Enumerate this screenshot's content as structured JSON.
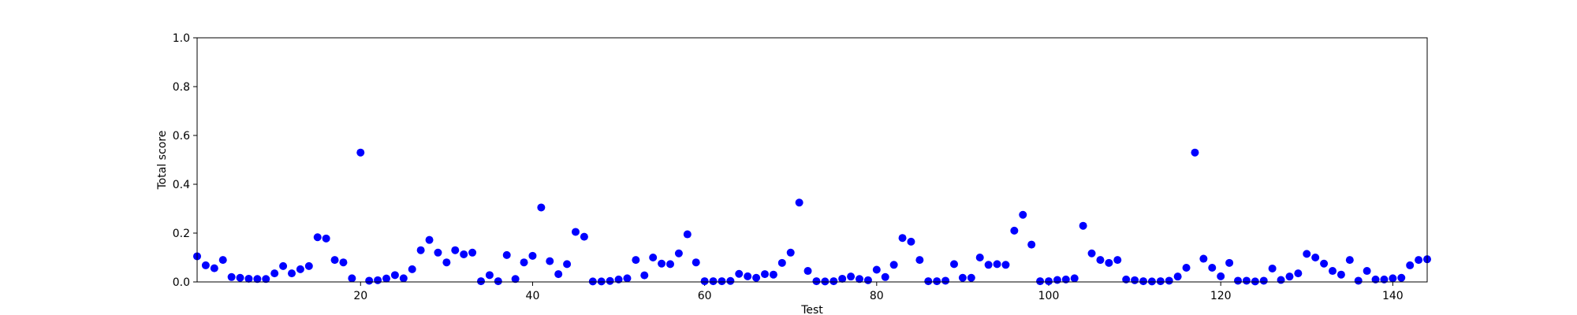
{
  "chart_data": {
    "type": "scatter",
    "title": "",
    "xlabel": "Test",
    "ylabel": "Total score",
    "xlim": [
      1,
      144
    ],
    "ylim": [
      0,
      1.0
    ],
    "xticks": [
      20,
      40,
      60,
      80,
      100,
      120,
      140
    ],
    "yticks": [
      0.0,
      0.2,
      0.4,
      0.6,
      0.8,
      1.0
    ],
    "ytick_labels": [
      "0.0",
      "0.2",
      "0.4",
      "0.6",
      "0.8",
      "1.0"
    ],
    "grid": false,
    "marker_color": "#0000ff",
    "series": [
      {
        "x": [
          1,
          2,
          3,
          4,
          5,
          6,
          7,
          8,
          9,
          10,
          11,
          12,
          13,
          14,
          15,
          16,
          17,
          18,
          19,
          20,
          21,
          22,
          23,
          24,
          25,
          26,
          27,
          28,
          29,
          30,
          31,
          32,
          33,
          34,
          35,
          36,
          37,
          38,
          39,
          40,
          41,
          42,
          43,
          44,
          45,
          46,
          47,
          48,
          49,
          50,
          51,
          52,
          53,
          54,
          55,
          56,
          57,
          58,
          59,
          60,
          61,
          62,
          63,
          64,
          65,
          66,
          67,
          68,
          69,
          70,
          71,
          72,
          73,
          74,
          75,
          76,
          77,
          78,
          79,
          80,
          81,
          82,
          83,
          84,
          85,
          86,
          87,
          88,
          89,
          90,
          91,
          92,
          93,
          94,
          95,
          96,
          97,
          98,
          99,
          100,
          101,
          102,
          103,
          104,
          105,
          106,
          107,
          108,
          109,
          110,
          111,
          112,
          113,
          114,
          115,
          116,
          117,
          118,
          119,
          120,
          121,
          122,
          123,
          124,
          125,
          126,
          127,
          128,
          129,
          130,
          131,
          132,
          133,
          134,
          135,
          136,
          137,
          138,
          139,
          140,
          141,
          142,
          143,
          144
        ],
        "y": [
          0.105,
          0.068,
          0.056,
          0.09,
          0.02,
          0.017,
          0.013,
          0.012,
          0.012,
          0.035,
          0.065,
          0.035,
          0.052,
          0.065,
          0.183,
          0.178,
          0.09,
          0.08,
          0.015,
          0.53,
          0.005,
          0.007,
          0.014,
          0.028,
          0.015,
          0.052,
          0.13,
          0.172,
          0.12,
          0.08,
          0.13,
          0.113,
          0.12,
          0.003,
          0.028,
          0.003,
          0.11,
          0.012,
          0.08,
          0.107,
          0.305,
          0.085,
          0.032,
          0.073,
          0.205,
          0.185,
          0.002,
          0.002,
          0.004,
          0.01,
          0.015,
          0.09,
          0.027,
          0.1,
          0.075,
          0.073,
          0.117,
          0.195,
          0.08,
          0.003,
          0.003,
          0.003,
          0.004,
          0.033,
          0.023,
          0.017,
          0.032,
          0.03,
          0.078,
          0.12,
          0.325,
          0.045,
          0.003,
          0.002,
          0.003,
          0.013,
          0.022,
          0.012,
          0.007,
          0.05,
          0.02,
          0.07,
          0.18,
          0.165,
          0.09,
          0.003,
          0.003,
          0.005,
          0.073,
          0.017,
          0.017,
          0.1,
          0.07,
          0.073,
          0.07,
          0.21,
          0.275,
          0.153,
          0.003,
          0.003,
          0.008,
          0.01,
          0.015,
          0.23,
          0.117,
          0.09,
          0.078,
          0.09,
          0.01,
          0.007,
          0.003,
          0.002,
          0.003,
          0.005,
          0.022,
          0.058,
          0.53,
          0.095,
          0.058,
          0.023,
          0.078,
          0.005,
          0.005,
          0.002,
          0.005,
          0.055,
          0.008,
          0.022,
          0.035,
          0.115,
          0.1,
          0.075,
          0.045,
          0.03,
          0.09,
          0.005,
          0.045,
          0.01,
          0.01,
          0.015,
          0.017,
          0.068,
          0.09,
          0.093
        ]
      }
    ]
  }
}
